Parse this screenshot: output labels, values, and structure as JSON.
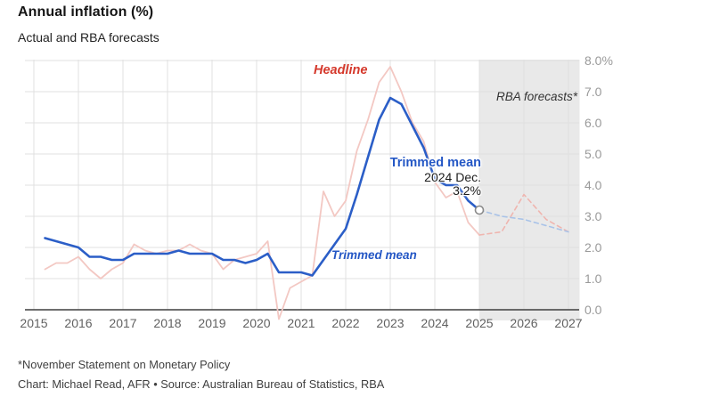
{
  "page": {
    "footnote": "*November Statement on Monetary Policy",
    "credit": "Chart: Michael Read, AFR • Source: Australian Bureau of Statistics, RBA"
  },
  "chart_data": {
    "type": "line",
    "title": "Annual inflation (%)",
    "subtitle": "Actual and RBA forecasts",
    "xlabel": "",
    "ylabel": "",
    "xlim": [
      2014.8,
      2027.25
    ],
    "ylim": [
      0,
      8
    ],
    "x_ticks": [
      2015,
      2016,
      2017,
      2018,
      2019,
      2020,
      2021,
      2022,
      2023,
      2024,
      2025,
      2026,
      2027
    ],
    "x_tick_labels": [
      "2015",
      "2016",
      "2017",
      "2018",
      "2019",
      "2020",
      "2021",
      "2022",
      "2023",
      "2024",
      "2025",
      "2026",
      "2027"
    ],
    "y_ticks": [
      0,
      1,
      2,
      3,
      4,
      5,
      6,
      7,
      8
    ],
    "y_tick_labels": [
      "0.0",
      "1.0",
      "2.0",
      "3.0",
      "4.0",
      "5.0",
      "6.0",
      "7.0",
      "8.0%"
    ],
    "grid": true,
    "legend_position": "inline-line-labels",
    "grid_color": "#e0e0e0",
    "axis_color": "#3f3f3f",
    "x_tick_color": "#616161",
    "y_tick_color": "#9a9a9a",
    "forecast_band": {
      "from": 2025,
      "to": 2027.25,
      "label": "RBA forecasts*",
      "color": "#e9e9e9",
      "label_color": "#333333"
    },
    "series": [
      {
        "name": "Headline",
        "role": "headline_actual",
        "line_style": "solid",
        "color": "#f3c8c3",
        "x": [
          2015.25,
          2015.5,
          2015.75,
          2016,
          2016.25,
          2016.5,
          2016.75,
          2017,
          2017.25,
          2017.5,
          2017.75,
          2018,
          2018.25,
          2018.5,
          2018.75,
          2019,
          2019.25,
          2019.5,
          2019.75,
          2020,
          2020.25,
          2020.5,
          2020.75,
          2021,
          2021.25,
          2021.5,
          2021.75,
          2022,
          2022.25,
          2022.5,
          2022.75,
          2023,
          2023.25,
          2023.5,
          2023.75,
          2024,
          2024.25,
          2024.5,
          2024.75,
          2025
        ],
        "values": [
          1.3,
          1.5,
          1.5,
          1.7,
          1.3,
          1.0,
          1.3,
          1.5,
          2.1,
          1.9,
          1.8,
          1.9,
          1.9,
          2.1,
          1.9,
          1.8,
          1.3,
          1.6,
          1.7,
          1.8,
          2.2,
          -0.3,
          0.7,
          0.9,
          1.1,
          3.8,
          3.0,
          3.5,
          5.1,
          6.1,
          7.3,
          7.8,
          7.0,
          6.0,
          5.4,
          4.1,
          3.6,
          3.8,
          2.8,
          2.4
        ]
      },
      {
        "name": "Trimmed mean",
        "role": "trimmed_actual",
        "line_style": "solid",
        "color": "#2b5ec7",
        "x": [
          2015.25,
          2015.5,
          2015.75,
          2016,
          2016.25,
          2016.5,
          2016.75,
          2017,
          2017.25,
          2017.5,
          2017.75,
          2018,
          2018.25,
          2018.5,
          2018.75,
          2019,
          2019.25,
          2019.5,
          2019.75,
          2020,
          2020.25,
          2020.5,
          2020.75,
          2021,
          2021.25,
          2021.5,
          2021.75,
          2022,
          2022.25,
          2022.5,
          2022.75,
          2023,
          2023.25,
          2023.5,
          2023.75,
          2024,
          2024.25,
          2024.5,
          2024.75,
          2025
        ],
        "values": [
          2.3,
          2.2,
          2.1,
          2.0,
          1.7,
          1.7,
          1.6,
          1.6,
          1.8,
          1.8,
          1.8,
          1.8,
          1.9,
          1.8,
          1.8,
          1.8,
          1.6,
          1.6,
          1.5,
          1.6,
          1.8,
          1.2,
          1.2,
          1.2,
          1.1,
          1.6,
          2.1,
          2.6,
          3.7,
          4.9,
          6.1,
          6.8,
          6.6,
          5.9,
          5.2,
          4.2,
          4.0,
          4.0,
          3.5,
          3.2
        ]
      },
      {
        "name": "Headline (RBA forecast)",
        "role": "headline_forecast",
        "line_style": "dashed",
        "color": "#efb5af",
        "x": [
          2025,
          2025.5,
          2026,
          2026.5,
          2027
        ],
        "values": [
          2.4,
          2.5,
          3.7,
          2.9,
          2.5
        ]
      },
      {
        "name": "Trimmed mean (RBA forecast)",
        "role": "trimmed_forecast",
        "line_style": "dashed",
        "color": "#a9c3e8",
        "x": [
          2025,
          2025.5,
          2026,
          2026.5,
          2027
        ],
        "values": [
          3.2,
          3.0,
          2.9,
          2.7,
          2.5
        ]
      }
    ],
    "annotation": {
      "date_label": "2024 Dec.",
      "value_label": "3.2%",
      "x": 2025,
      "y": 3.2,
      "color": "#1d1d1d",
      "marker": {
        "shape": "open-circle",
        "fill": "#ffffff",
        "stroke": "#8a8a8a"
      }
    },
    "series_labels": {
      "headline": "Headline",
      "headline_color": "#d5392c",
      "trimmed_mean_bold": "Trimmed mean",
      "trimmed_mean_line": "Trimmed mean",
      "trimmed_mean_color": "#2457c5"
    }
  }
}
